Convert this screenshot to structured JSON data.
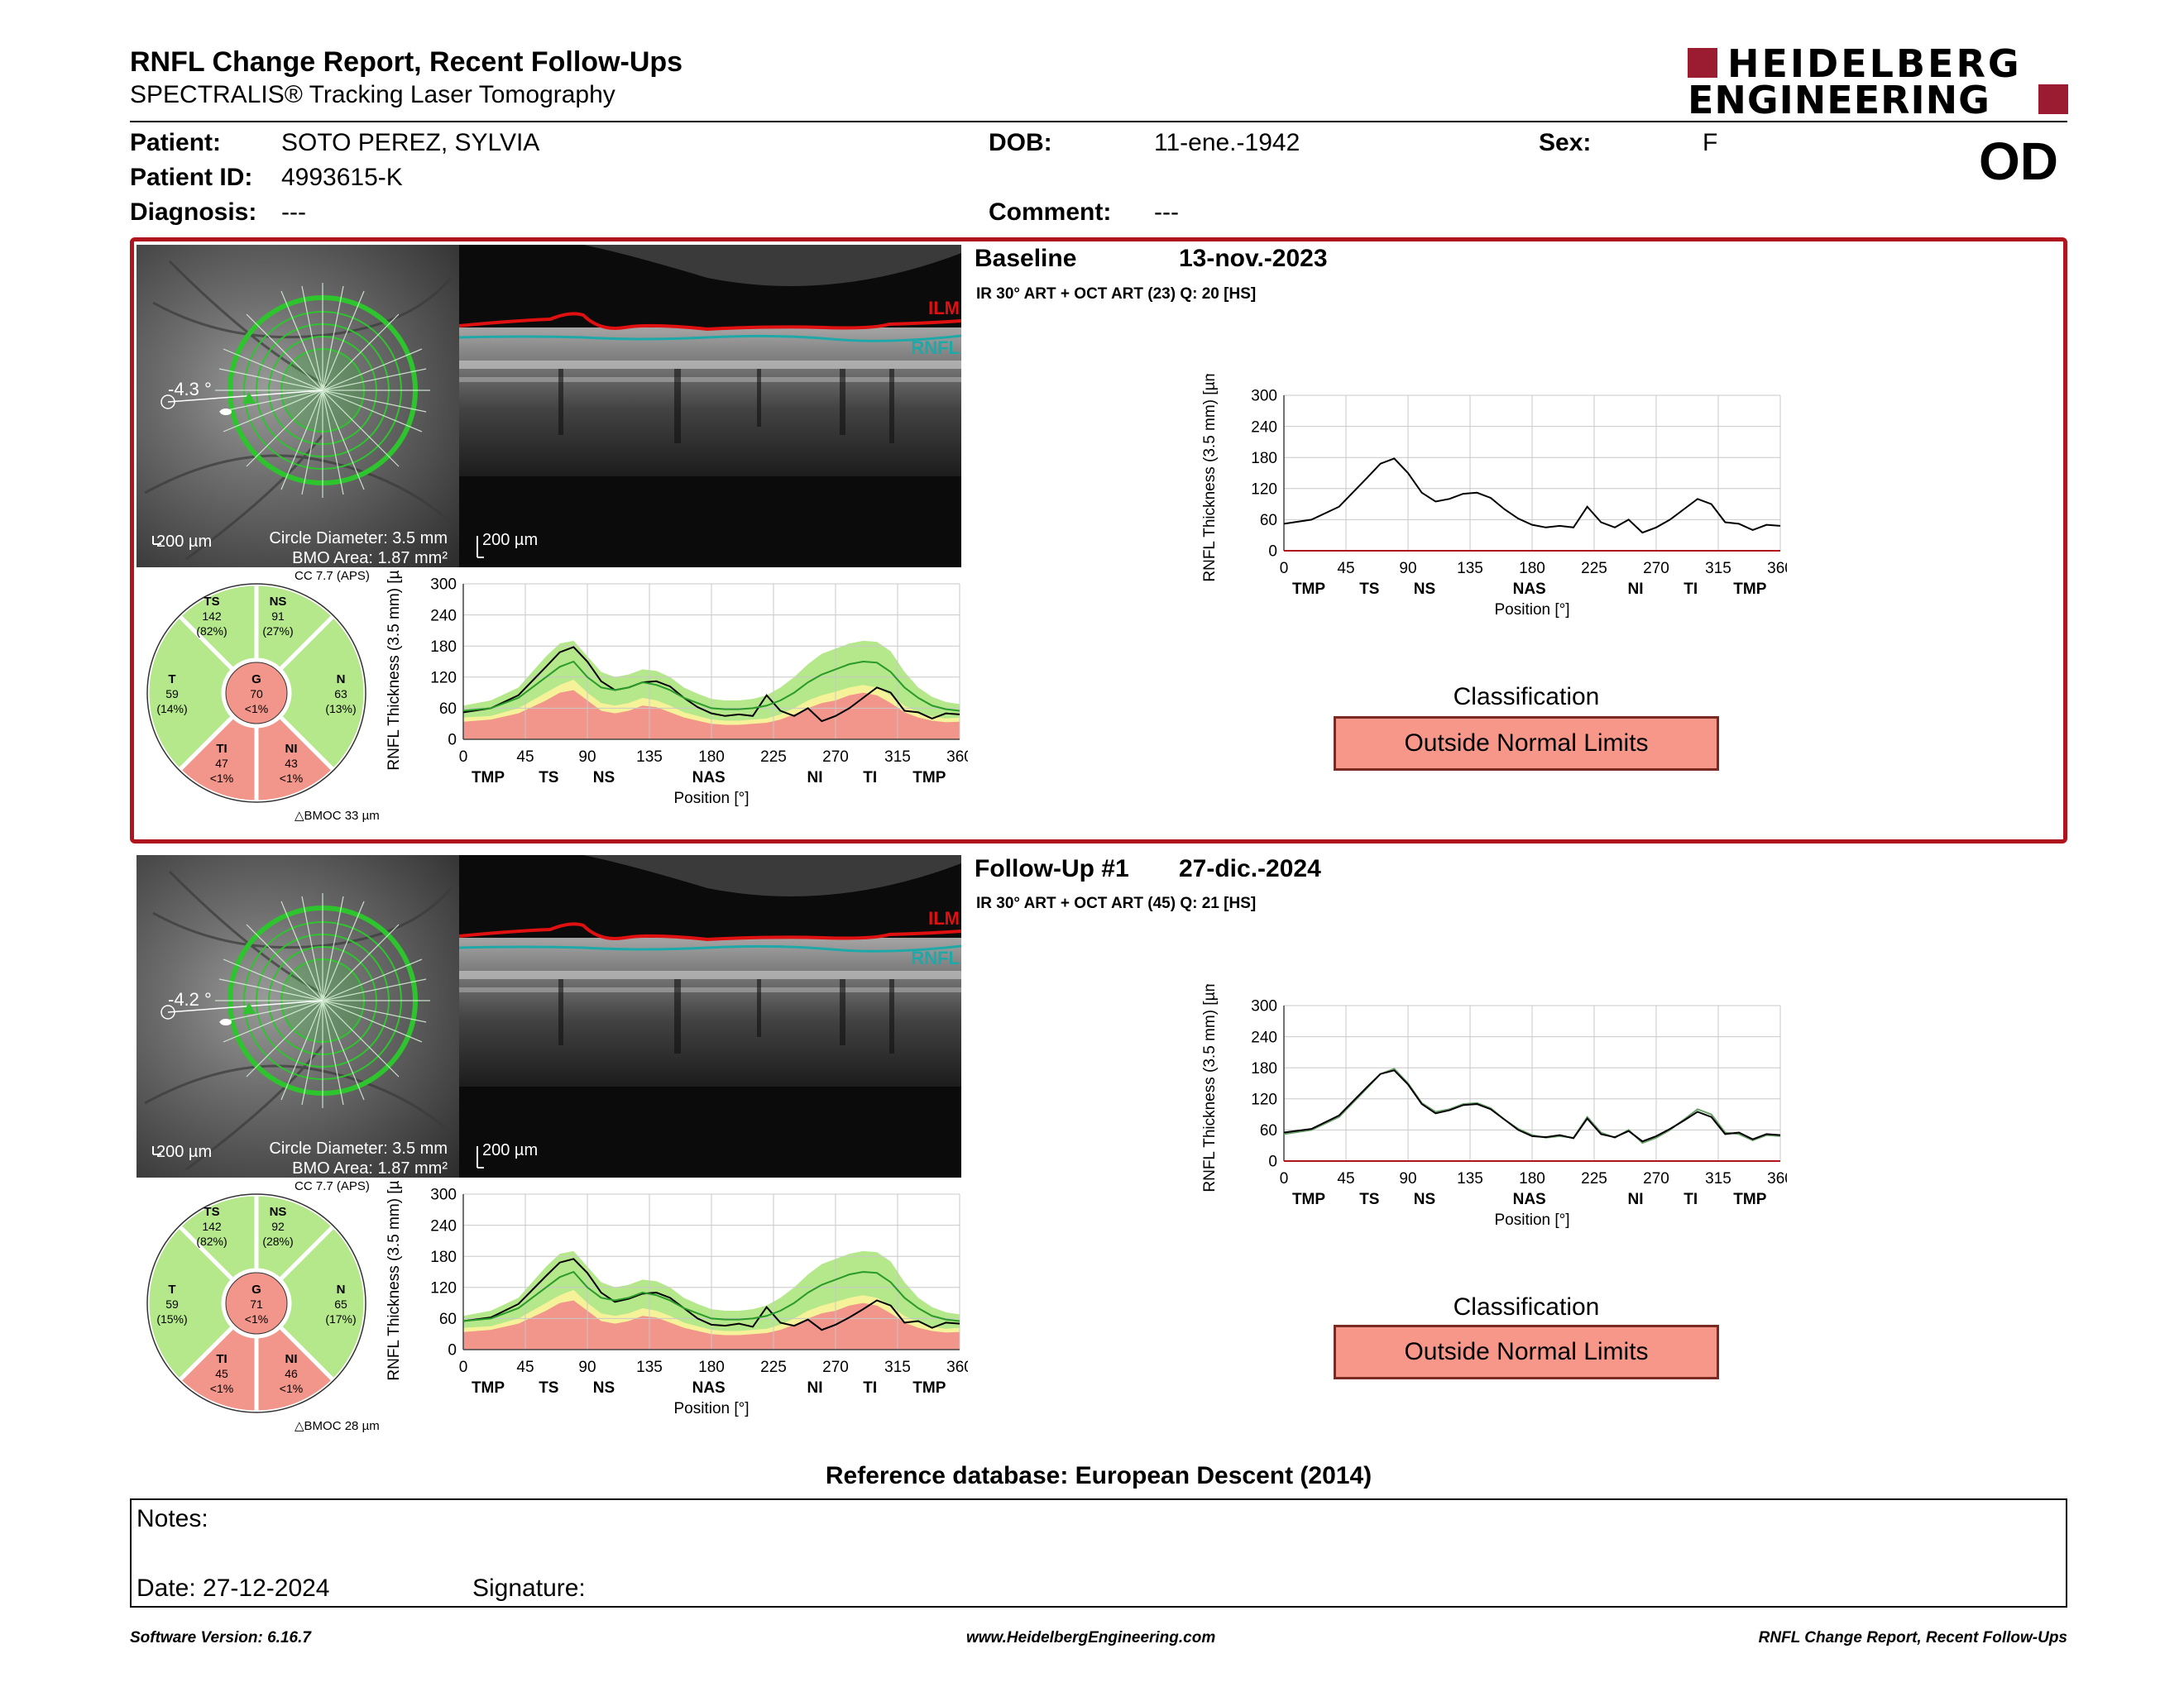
{
  "report": {
    "title": "RNFL Change Report, Recent Follow-Ups",
    "subtitle": "SPECTRALIS® Tracking Laser Tomography",
    "logo_line1": "HEIDELBERG",
    "logo_line2": "ENGINEERING",
    "eye": "OD"
  },
  "patient": {
    "patient_label": "Patient:",
    "patient_name": "SOTO PEREZ, SYLVIA",
    "patient_id_label": "Patient ID:",
    "patient_id": "4993615-K",
    "diagnosis_label": "Diagnosis:",
    "diagnosis": "---",
    "dob_label": "DOB:",
    "dob": "11-ene.-1942",
    "comment_label": "Comment:",
    "comment": "---",
    "sex_label": "Sex:",
    "sex": "F"
  },
  "colors": {
    "baseline_frame": "#b0141c",
    "normal_green": "#b5e88a",
    "borderline_yellow": "#f6f29a",
    "outside_red": "#f2958a",
    "ilm_red": "#e01010",
    "rnfl_cyan": "#1fa8a8",
    "circle_green": "#2ec42e"
  },
  "visits": [
    {
      "visit_label": "Baseline",
      "date": "13-nov.-2023",
      "acquisition": "IR 30° ART + OCT ART (23) Q: 20 [HS]",
      "angle": "-4.3 °",
      "scale_fundus": "200 µm",
      "scale_oct": "200 µm",
      "circle_diameter": "Circle Diameter: 3.5 mm",
      "bmo_area": "BMO Area: 1.87 mm²",
      "ilm_label": "ILM",
      "rnfl_label": "RNFL",
      "cc": "CC 7.7 (APS)",
      "bmoc": "BMOC 33 µm",
      "sectors": {
        "TS": {
          "label": "TS",
          "value": "142",
          "pct": "(82%)"
        },
        "NS": {
          "label": "NS",
          "value": "91",
          "pct": "(27%)"
        },
        "T": {
          "label": "T",
          "value": "59",
          "pct": "(14%)"
        },
        "G": {
          "label": "G",
          "value": "70",
          "pct": "<1%"
        },
        "N": {
          "label": "N",
          "value": "63",
          "pct": "(13%)"
        },
        "TI": {
          "label": "TI",
          "value": "47",
          "pct": "<1%"
        },
        "NI": {
          "label": "NI",
          "value": "43",
          "pct": "<1%"
        }
      },
      "classification_label": "Classification",
      "classification": "Outside Normal Limits"
    },
    {
      "visit_label": "Follow-Up #1",
      "date": "27-dic.-2024",
      "acquisition": "IR 30° ART + OCT ART (45) Q: 21 [HS]",
      "angle": "-4.2 °",
      "scale_fundus": "200 µm",
      "scale_oct": "200 µm",
      "circle_diameter": "Circle Diameter: 3.5 mm",
      "bmo_area": "BMO Area: 1.87 mm²",
      "ilm_label": "ILM",
      "rnfl_label": "RNFL",
      "cc": "CC 7.7 (APS)",
      "bmoc": "BMOC 28 µm",
      "sectors": {
        "TS": {
          "label": "TS",
          "value": "142",
          "pct": "(82%)"
        },
        "NS": {
          "label": "NS",
          "value": "92",
          "pct": "(28%)"
        },
        "T": {
          "label": "T",
          "value": "59",
          "pct": "(15%)"
        },
        "G": {
          "label": "G",
          "value": "71",
          "pct": "<1%"
        },
        "N": {
          "label": "N",
          "value": "65",
          "pct": "(17%)"
        },
        "TI": {
          "label": "TI",
          "value": "45",
          "pct": "<1%"
        },
        "NI": {
          "label": "NI",
          "value": "46",
          "pct": "<1%"
        }
      },
      "classification_label": "Classification",
      "classification": "Outside Normal Limits"
    }
  ],
  "chart_data": [
    {
      "type": "area",
      "chart": "baseline-profile-normative",
      "ylabel": "RNFL Thickness (3.5 mm) [µm]",
      "xlabel": "Position [°]",
      "xlim": [
        0,
        360
      ],
      "ylim": [
        0,
        300
      ],
      "xticks": [
        0,
        45,
        90,
        135,
        180,
        225,
        270,
        315,
        360
      ],
      "yticks": [
        0,
        60,
        120,
        180,
        240,
        300
      ],
      "sector_labels": [
        "TMP",
        "TS",
        "NS",
        "NAS",
        "NI",
        "TI",
        "TMP"
      ],
      "sector_label_x": [
        18,
        62,
        102,
        178,
        255,
        295,
        338
      ],
      "x": [
        0,
        20,
        40,
        60,
        70,
        80,
        90,
        100,
        110,
        120,
        130,
        140,
        150,
        160,
        170,
        180,
        190,
        200,
        210,
        220,
        230,
        240,
        250,
        260,
        270,
        280,
        290,
        300,
        310,
        320,
        330,
        340,
        350,
        360
      ],
      "series": [
        {
          "name": "measured",
          "values": [
            52,
            60,
            85,
            140,
            168,
            178,
            150,
            112,
            95,
            100,
            110,
            112,
            102,
            80,
            62,
            50,
            45,
            48,
            45,
            85,
            55,
            45,
            60,
            35,
            45,
            60,
            80,
            100,
            90,
            55,
            52,
            40,
            50,
            48
          ]
        },
        {
          "name": "normative_mean",
          "values": [
            55,
            60,
            80,
            120,
            140,
            150,
            120,
            100,
            95,
            100,
            110,
            105,
            95,
            80,
            70,
            60,
            58,
            58,
            60,
            65,
            75,
            90,
            110,
            125,
            135,
            145,
            150,
            148,
            130,
            100,
            80,
            65,
            58,
            55
          ]
        }
      ],
      "bands": {
        "normal_upper": [
          65,
          75,
          100,
          160,
          185,
          190,
          160,
          130,
          120,
          125,
          135,
          132,
          120,
          100,
          88,
          78,
          75,
          75,
          78,
          85,
          100,
          120,
          145,
          165,
          175,
          185,
          190,
          188,
          170,
          130,
          100,
          82,
          72,
          68
        ],
        "borderline_upper": [
          42,
          45,
          60,
          90,
          105,
          115,
          90,
          70,
          65,
          70,
          80,
          75,
          65,
          52,
          45,
          38,
          36,
          36,
          38,
          40,
          48,
          60,
          75,
          85,
          92,
          100,
          105,
          100,
          85,
          65,
          52,
          44,
          40,
          42
        ],
        "outside_upper": [
          34,
          38,
          50,
          75,
          90,
          95,
          75,
          55,
          50,
          55,
          65,
          62,
          52,
          42,
          36,
          30,
          28,
          28,
          30,
          32,
          38,
          48,
          60,
          70,
          75,
          85,
          90,
          85,
          70,
          52,
          42,
          36,
          33,
          34
        ]
      }
    },
    {
      "type": "line",
      "chart": "baseline-profile-change",
      "ylabel": "RNFL Thickness (3.5 mm) [µm]",
      "xlabel": "Position [°]",
      "xlim": [
        0,
        360
      ],
      "ylim": [
        0,
        300
      ],
      "xticks": [
        0,
        45,
        90,
        135,
        180,
        225,
        270,
        315,
        360
      ],
      "yticks": [
        0,
        60,
        120,
        180,
        240,
        300
      ],
      "sector_labels": [
        "TMP",
        "TS",
        "NS",
        "NAS",
        "NI",
        "TI",
        "TMP"
      ],
      "sector_label_x": [
        18,
        62,
        102,
        178,
        255,
        295,
        338
      ],
      "x": [
        0,
        20,
        40,
        60,
        70,
        80,
        90,
        100,
        110,
        120,
        130,
        140,
        150,
        160,
        170,
        180,
        190,
        200,
        210,
        220,
        230,
        240,
        250,
        260,
        270,
        280,
        290,
        300,
        310,
        320,
        330,
        340,
        350,
        360
      ],
      "series": [
        {
          "name": "measured",
          "values": [
            52,
            60,
            85,
            140,
            168,
            178,
            150,
            112,
            95,
            100,
            110,
            112,
            102,
            80,
            62,
            50,
            45,
            48,
            45,
            85,
            55,
            45,
            60,
            35,
            45,
            60,
            80,
            100,
            90,
            55,
            52,
            40,
            50,
            48
          ]
        }
      ]
    },
    {
      "type": "area",
      "chart": "followup-profile-normative",
      "ylabel": "RNFL Thickness (3.5 mm) [µm]",
      "xlabel": "Position [°]",
      "xlim": [
        0,
        360
      ],
      "ylim": [
        0,
        300
      ],
      "xticks": [
        0,
        45,
        90,
        135,
        180,
        225,
        270,
        315,
        360
      ],
      "yticks": [
        0,
        60,
        120,
        180,
        240,
        300
      ],
      "sector_labels": [
        "TMP",
        "TS",
        "NS",
        "NAS",
        "NI",
        "TI",
        "TMP"
      ],
      "sector_label_x": [
        18,
        62,
        102,
        178,
        255,
        295,
        338
      ],
      "x": [
        0,
        20,
        40,
        60,
        70,
        80,
        90,
        100,
        110,
        120,
        130,
        140,
        150,
        160,
        170,
        180,
        190,
        200,
        210,
        220,
        230,
        240,
        250,
        260,
        270,
        280,
        290,
        300,
        310,
        320,
        330,
        340,
        350,
        360
      ],
      "series": [
        {
          "name": "measured",
          "values": [
            55,
            62,
            88,
            142,
            168,
            175,
            148,
            110,
            92,
            98,
            108,
            110,
            100,
            80,
            60,
            48,
            46,
            50,
            44,
            82,
            52,
            46,
            58,
            38,
            48,
            62,
            78,
            95,
            85,
            52,
            55,
            42,
            52,
            50
          ]
        },
        {
          "name": "normative_mean",
          "values": [
            55,
            60,
            80,
            120,
            140,
            150,
            120,
            100,
            95,
            100,
            110,
            105,
            95,
            80,
            70,
            60,
            58,
            58,
            60,
            65,
            75,
            90,
            110,
            125,
            135,
            145,
            150,
            148,
            130,
            100,
            80,
            65,
            58,
            55
          ]
        }
      ],
      "bands": {
        "normal_upper": [
          65,
          75,
          100,
          160,
          185,
          190,
          160,
          130,
          120,
          125,
          135,
          132,
          120,
          100,
          88,
          78,
          75,
          75,
          78,
          85,
          100,
          120,
          145,
          165,
          175,
          185,
          190,
          188,
          170,
          130,
          100,
          82,
          72,
          68
        ],
        "borderline_upper": [
          42,
          45,
          60,
          90,
          105,
          115,
          90,
          70,
          65,
          70,
          80,
          75,
          65,
          52,
          45,
          38,
          36,
          36,
          38,
          40,
          48,
          60,
          75,
          85,
          92,
          100,
          105,
          100,
          85,
          65,
          52,
          44,
          40,
          42
        ],
        "outside_upper": [
          34,
          38,
          50,
          75,
          90,
          95,
          75,
          55,
          50,
          55,
          65,
          62,
          52,
          42,
          36,
          30,
          28,
          28,
          30,
          32,
          38,
          48,
          60,
          70,
          75,
          85,
          90,
          85,
          70,
          52,
          42,
          36,
          33,
          34
        ]
      }
    },
    {
      "type": "line",
      "chart": "followup-profile-change",
      "ylabel": "RNFL Thickness (3.5 mm) [µm]",
      "xlabel": "Position [°]",
      "xlim": [
        0,
        360
      ],
      "ylim": [
        0,
        300
      ],
      "xticks": [
        0,
        45,
        90,
        135,
        180,
        225,
        270,
        315,
        360
      ],
      "yticks": [
        0,
        60,
        120,
        180,
        240,
        300
      ],
      "sector_labels": [
        "TMP",
        "TS",
        "NS",
        "NAS",
        "NI",
        "TI",
        "TMP"
      ],
      "sector_label_x": [
        18,
        62,
        102,
        178,
        255,
        295,
        338
      ],
      "x": [
        0,
        20,
        40,
        60,
        70,
        80,
        90,
        100,
        110,
        120,
        130,
        140,
        150,
        160,
        170,
        180,
        190,
        200,
        210,
        220,
        230,
        240,
        250,
        260,
        270,
        280,
        290,
        300,
        310,
        320,
        330,
        340,
        350,
        360
      ],
      "series": [
        {
          "name": "baseline",
          "values": [
            52,
            60,
            85,
            140,
            168,
            178,
            150,
            112,
            95,
            100,
            110,
            112,
            102,
            80,
            62,
            50,
            45,
            48,
            45,
            85,
            55,
            45,
            60,
            35,
            45,
            60,
            80,
            100,
            90,
            55,
            52,
            40,
            50,
            48
          ]
        },
        {
          "name": "measured",
          "values": [
            55,
            62,
            88,
            142,
            168,
            175,
            148,
            110,
            92,
            98,
            108,
            110,
            100,
            80,
            60,
            48,
            46,
            50,
            44,
            82,
            52,
            46,
            58,
            38,
            48,
            62,
            78,
            95,
            85,
            52,
            55,
            42,
            52,
            50
          ]
        }
      ]
    }
  ],
  "footer": {
    "reference_db": "Reference database: European Descent (2014)",
    "notes_label": "Notes:",
    "date_label": "Date: 27-12-2024",
    "signature_label": "Signature:",
    "software_version": "Software Version: 6.16.7",
    "website": "www.HeidelbergEngineering.com",
    "report_name": "RNFL Change Report, Recent Follow-Ups"
  }
}
